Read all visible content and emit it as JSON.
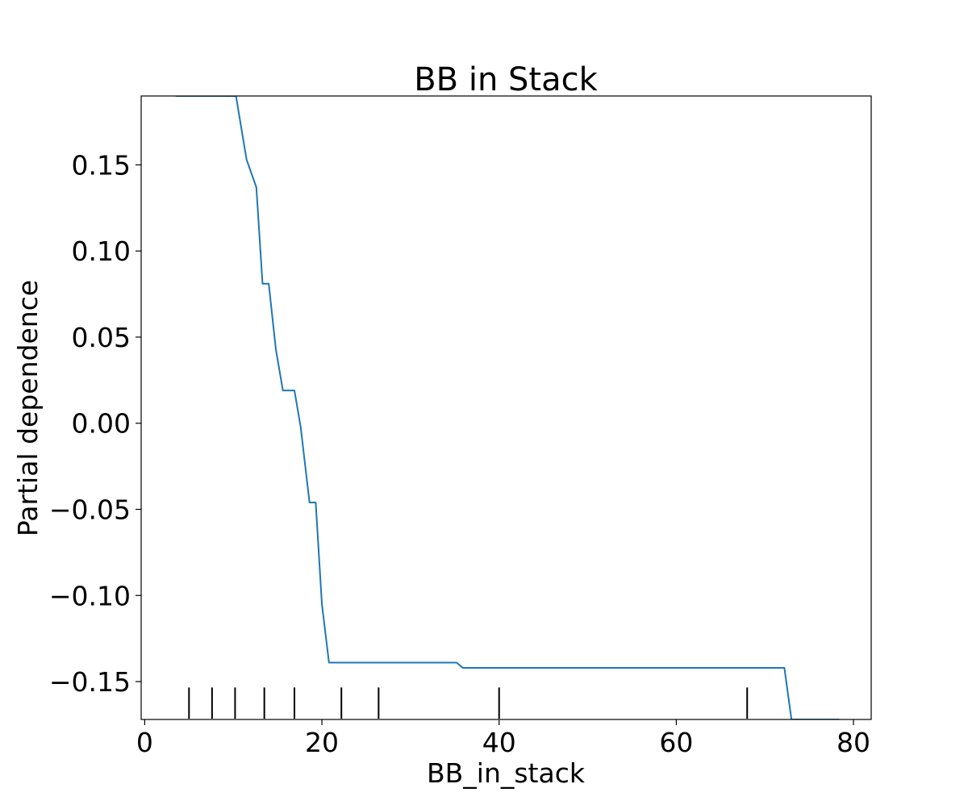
{
  "chart_data": {
    "type": "line",
    "title": "BB in Stack",
    "xlabel": "BB_in_stack",
    "ylabel": "Partial dependence",
    "xlim": [
      -0.4,
      82.0
    ],
    "ylim": [
      -0.172,
      0.19
    ],
    "x_ticks": [
      0,
      20,
      40,
      60,
      80
    ],
    "x_tick_labels": [
      "0",
      "20",
      "40",
      "60",
      "80"
    ],
    "y_ticks": [
      0.15,
      0.1,
      0.05,
      0.0,
      -0.05,
      -0.1,
      -0.15
    ],
    "y_tick_labels": [
      "0.15",
      "0.10",
      "0.05",
      "0.00",
      "−0.05",
      "−0.10",
      "−0.15"
    ],
    "grid": false,
    "colors": {
      "line": "#1f77b4",
      "deciles": "#000000"
    },
    "series": [
      {
        "x": [
          3.5,
          10.3,
          11.5,
          12.6,
          13.3,
          14.0,
          14.8,
          15.6,
          16.9,
          17.6,
          18.6,
          19.3,
          20.0,
          20.8,
          35.2,
          35.9,
          72.2,
          73.0,
          78.4
        ],
        "y": [
          0.19,
          0.19,
          0.153,
          0.137,
          0.081,
          0.081,
          0.043,
          0.019,
          0.019,
          -0.002,
          -0.046,
          -0.046,
          -0.105,
          -0.139,
          -0.139,
          -0.142,
          -0.142,
          -0.172,
          -0.172
        ]
      }
    ],
    "deciles": [
      5.0,
      7.6,
      10.2,
      13.5,
      16.9,
      22.2,
      26.4,
      40.0,
      68.0
    ]
  }
}
